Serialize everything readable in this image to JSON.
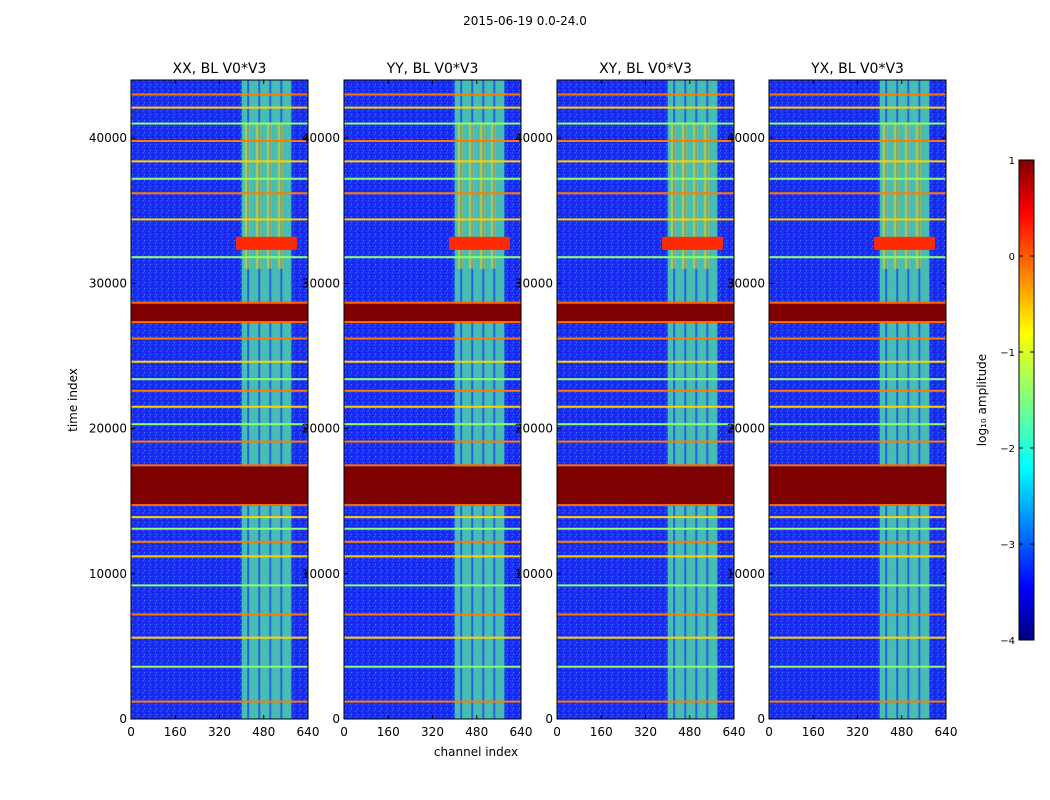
{
  "figure_title": "2015-06-19 0.0-24.0",
  "chart_data": {
    "type": "heatmap",
    "panels": [
      {
        "title": "XX, BL V0*V3"
      },
      {
        "title": "YY, BL V0*V3"
      },
      {
        "title": "XY, BL V0*V3"
      },
      {
        "title": "YX, BL V0*V3"
      }
    ],
    "xlabel": "channel index",
    "ylabel": "time index",
    "x_ticks": [
      "0",
      "160",
      "320",
      "480",
      "640"
    ],
    "y_ticks": [
      "0",
      "10000",
      "20000",
      "30000",
      "40000"
    ],
    "xlim": [
      0,
      640
    ],
    "ylim": [
      0,
      44000
    ],
    "colorbar": {
      "label": "log₁₀ amplitude",
      "ticks": [
        "1",
        "0",
        "−1",
        "−2",
        "−3",
        "−4"
      ],
      "range": [
        -4,
        1
      ],
      "colormap": "jet"
    },
    "features": {
      "saturated_bands_time": [
        [
          27400,
          28600
        ],
        [
          14800,
          17400
        ]
      ],
      "bright_channel_block": [
        400,
        580
      ],
      "strong_rfi_time": [
        32300,
        33200
      ],
      "weak_rows_time": [
        1200,
        3600,
        5600,
        7200,
        9200,
        11200,
        12200,
        13100,
        13900,
        19100,
        20300,
        21500,
        22600,
        23400,
        24600,
        26200,
        31800,
        34400,
        36200,
        37200,
        38400,
        39800,
        41000,
        42100,
        43000
      ]
    }
  }
}
